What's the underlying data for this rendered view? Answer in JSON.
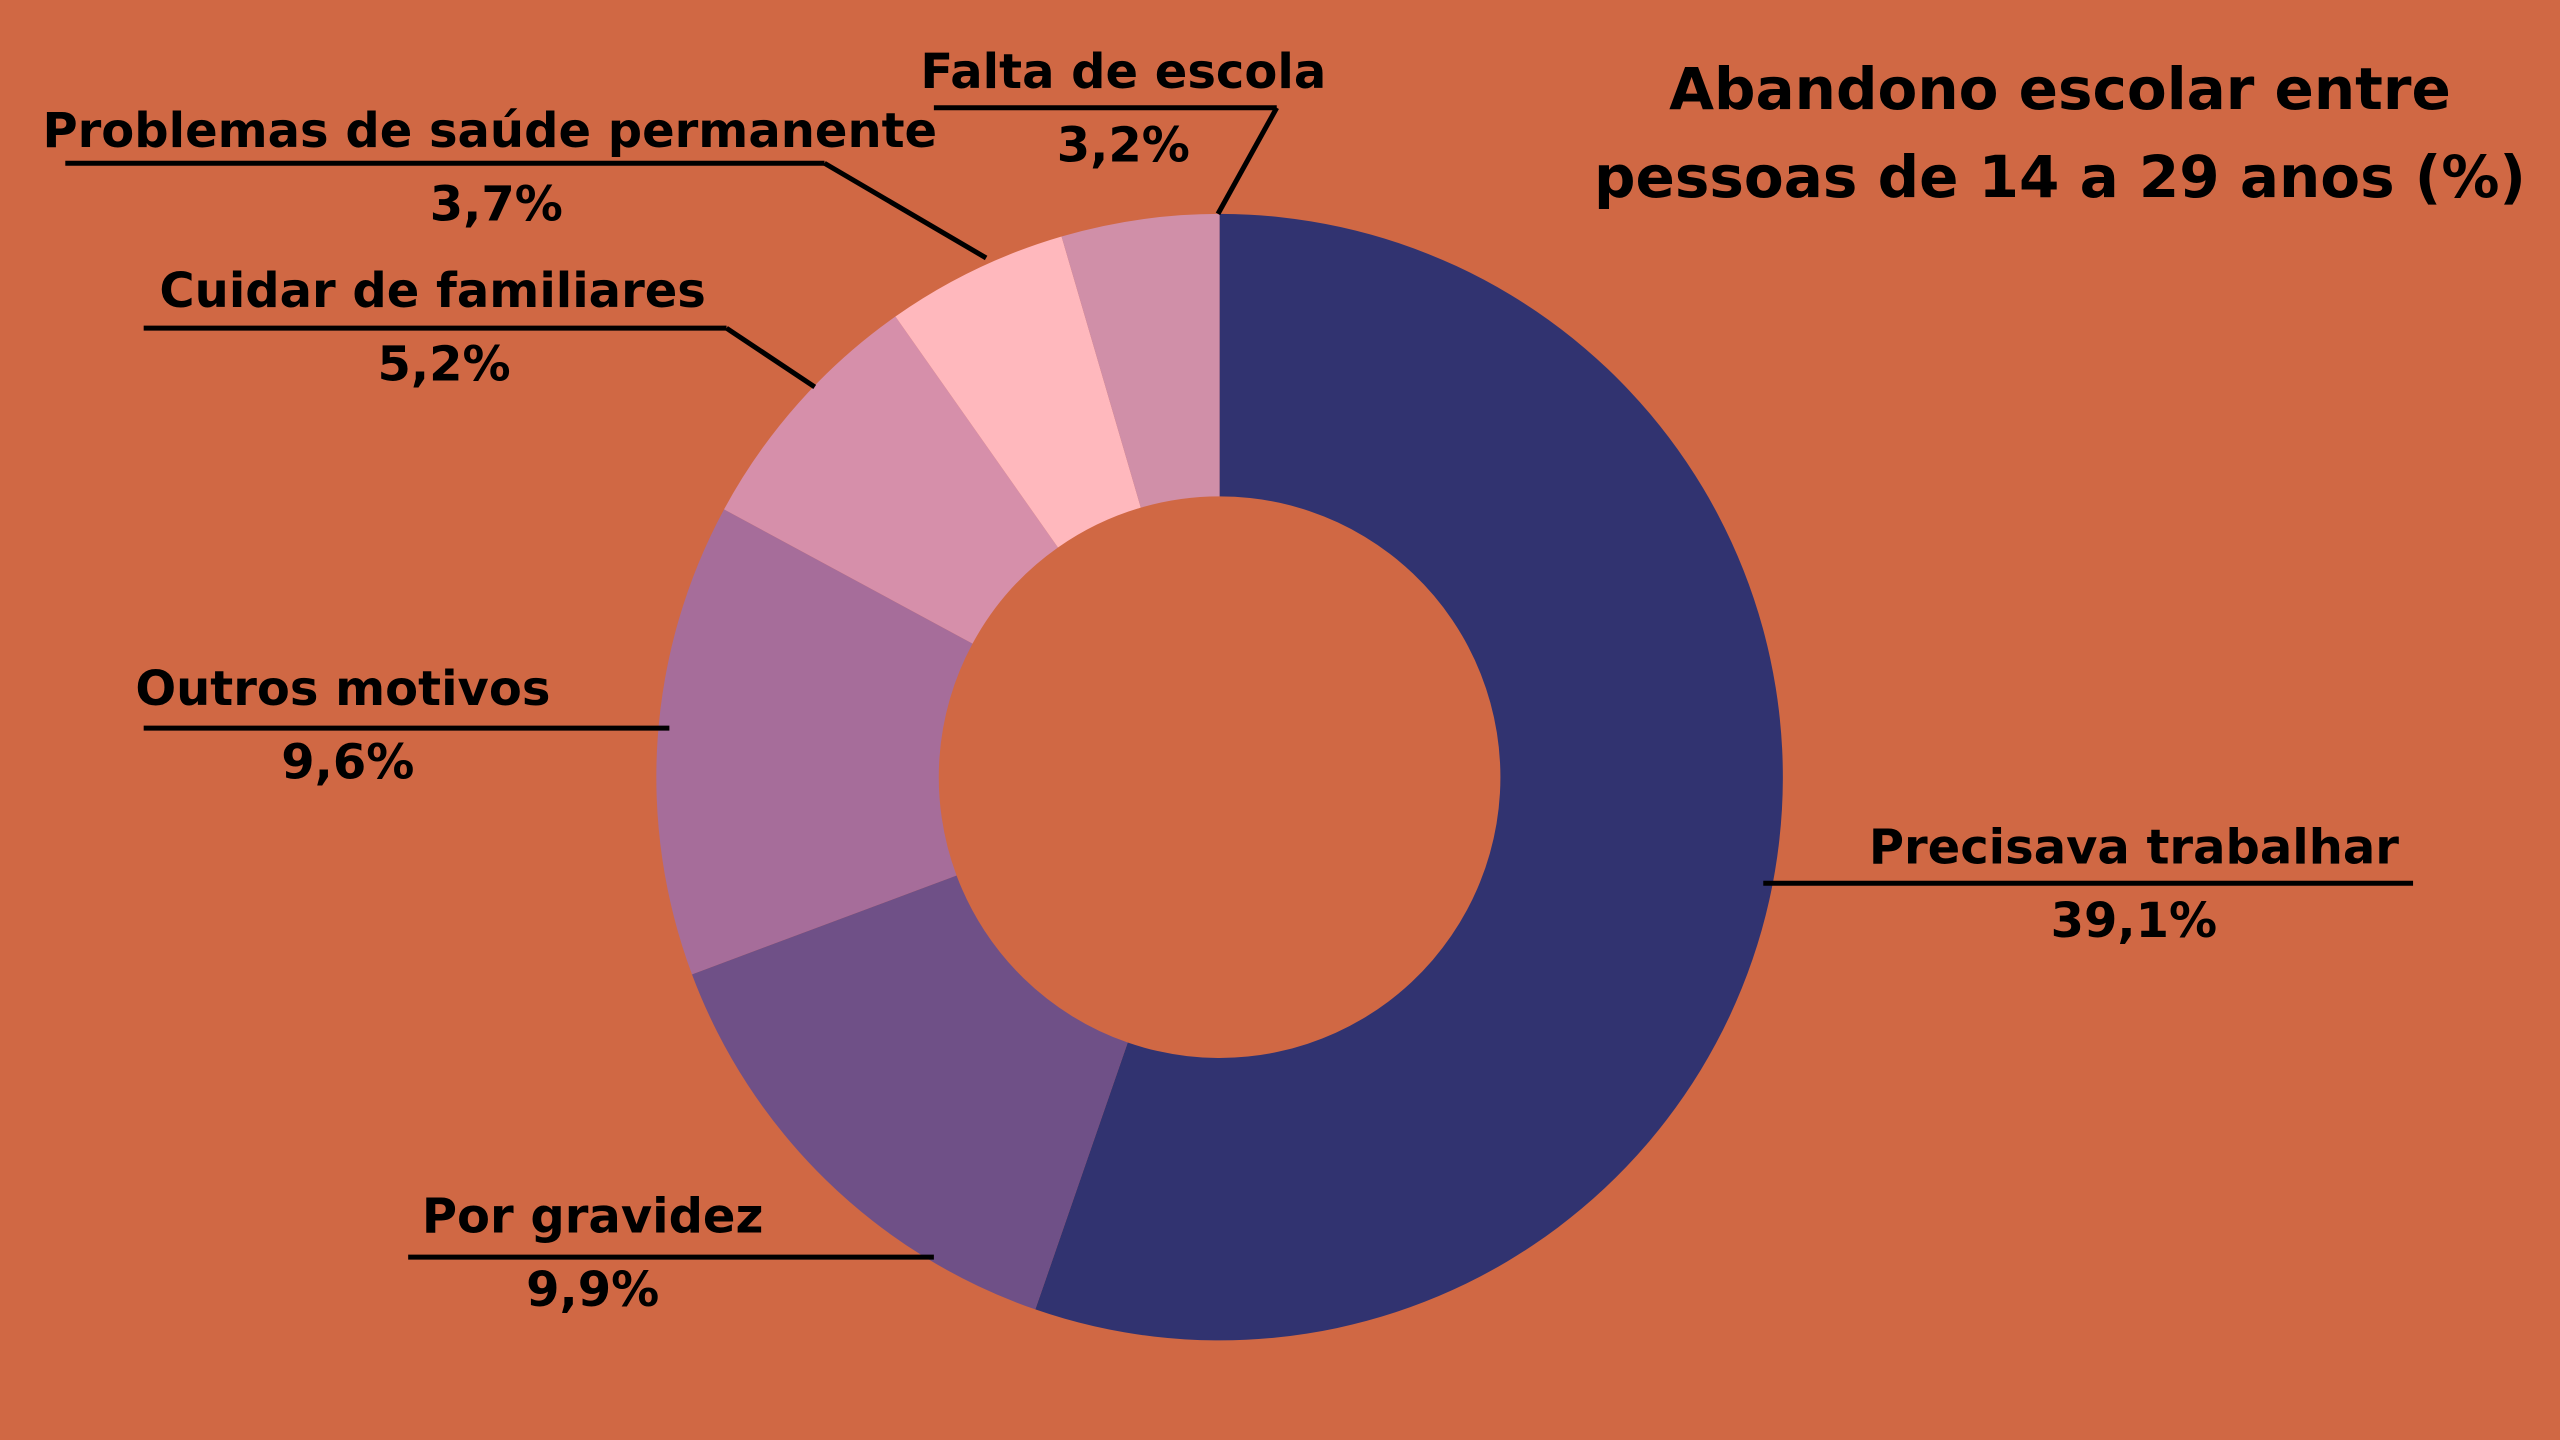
{
  "chart_data": {
    "type": "donut",
    "title": "Abandono escolar entre pessoas de 14 a 29 anos (%)",
    "categories": [
      "Precisava trabalhar",
      "Por gravidez",
      "Outros motivos",
      "Cuidar de familiares",
      "Problemas de saúde permanente",
      "Falta de escola"
    ],
    "values": [
      39.1,
      9.9,
      9.6,
      5.2,
      3.7,
      3.2
    ],
    "value_labels": [
      "39,1%",
      "9,9%",
      "9,6%",
      "5,2%",
      "3,7%",
      "3,2%"
    ],
    "colors": [
      "#313370",
      "#6f5087",
      "#a66d9a",
      "#d68faa",
      "#ffb8bd",
      "#d08fa8"
    ]
  }
}
